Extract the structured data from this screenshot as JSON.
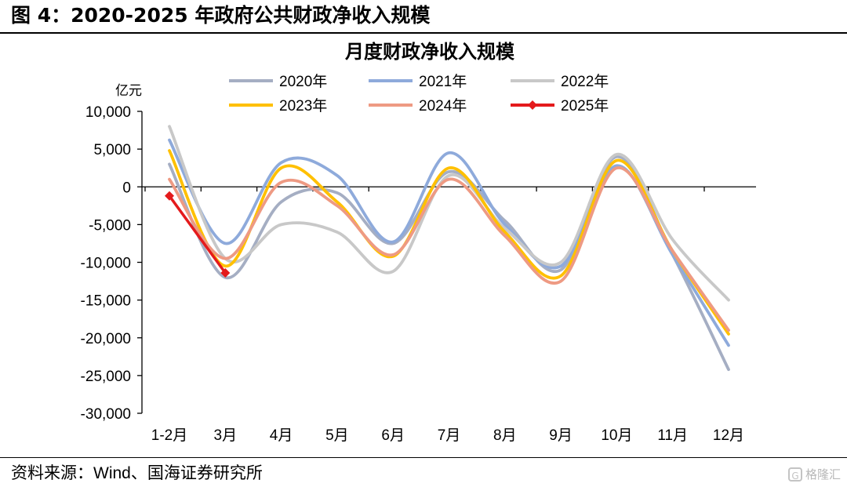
{
  "figure": {
    "title": "图 4：2020-2025 年政府公共财政净收入规模",
    "source": "资料来源：Wind、国海证券研究所",
    "watermark": "格隆汇"
  },
  "chart_data": {
    "type": "line",
    "title": "月度财政净收入规模",
    "ylabel": "亿元",
    "xlabel": "",
    "categories": [
      "1-2月",
      "3月",
      "4月",
      "5月",
      "6月",
      "7月",
      "8月",
      "9月",
      "10月",
      "11月",
      "12月"
    ],
    "ylim": [
      -30000,
      10000
    ],
    "yticks": [
      10000,
      5000,
      0,
      -5000,
      -10000,
      -15000,
      -20000,
      -25000,
      -30000
    ],
    "ytick_labels": [
      "10,000",
      "5,000",
      "0",
      "-5,000",
      "-10,000",
      "-15,000",
      "-20,000",
      "-25,000",
      "-30,000"
    ],
    "smooth": true,
    "grid": false,
    "legend_position": "top",
    "series": [
      {
        "name": "2020年",
        "color": "#a5aec3",
        "marker": false,
        "values": [
          3000,
          -12000,
          -2000,
          -800,
          -7500,
          2000,
          -4500,
          -11000,
          4000,
          -9000,
          -24200
        ]
      },
      {
        "name": "2021年",
        "color": "#8eaadb",
        "marker": false,
        "values": [
          6200,
          -7500,
          3200,
          1500,
          -7300,
          4500,
          -5000,
          -10500,
          2800,
          -9000,
          -21000
        ]
      },
      {
        "name": "2022年",
        "color": "#c8c8c8",
        "marker": false,
        "values": [
          8000,
          -9500,
          -5000,
          -6000,
          -11200,
          1500,
          -5500,
          -10000,
          4300,
          -7000,
          -15000
        ]
      },
      {
        "name": "2023年",
        "color": "#ffc000",
        "marker": false,
        "values": [
          4800,
          -10500,
          2500,
          -2000,
          -9200,
          2500,
          -6000,
          -11800,
          3500,
          -8500,
          -19500
        ]
      },
      {
        "name": "2024年",
        "color": "#ee9a83",
        "marker": false,
        "values": [
          1000,
          -9500,
          600,
          -2500,
          -9000,
          1000,
          -6500,
          -12500,
          2500,
          -8500,
          -19000
        ]
      },
      {
        "name": "2025年",
        "color": "#e41a1c",
        "marker": true,
        "values": [
          -1200,
          -11400,
          null,
          null,
          null,
          null,
          null,
          null,
          null,
          null,
          null
        ]
      }
    ]
  }
}
